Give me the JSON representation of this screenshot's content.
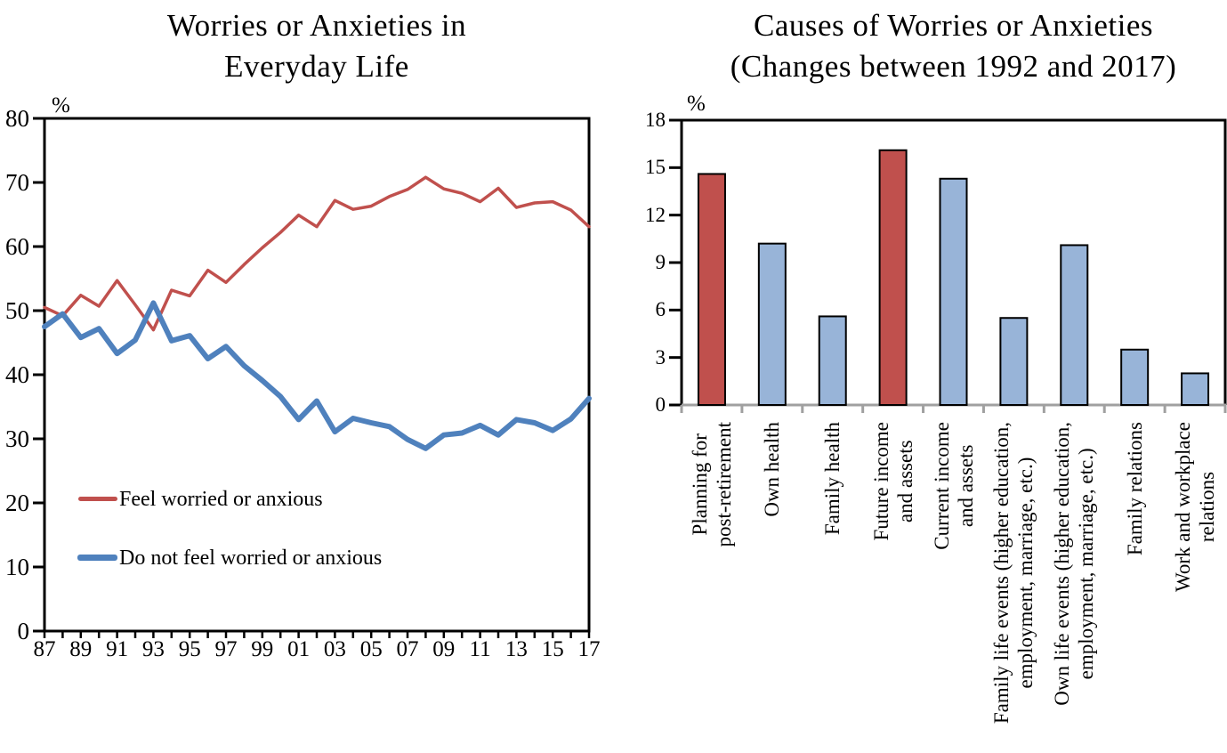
{
  "page": {
    "background": "#FFFFFF"
  },
  "chart_data": [
    {
      "type": "line",
      "title": "Worries or Anxieties in Everyday Life",
      "title_lines": [
        "Worries or Anxieties in",
        "Everyday Life"
      ],
      "unit_label": "%",
      "ylabel": "%",
      "ylim": [
        0,
        80
      ],
      "y_ticks": [
        0,
        10,
        20,
        30,
        40,
        50,
        60,
        70,
        80
      ],
      "x": [
        1987,
        1988,
        1989,
        1990,
        1991,
        1992,
        1993,
        1994,
        1995,
        1996,
        1997,
        1998,
        1999,
        2000,
        2001,
        2002,
        2003,
        2004,
        2005,
        2006,
        2007,
        2008,
        2009,
        2010,
        2011,
        2012,
        2013,
        2014,
        2015,
        2016,
        2017
      ],
      "x_tick_labels": [
        "87",
        "89",
        "91",
        "93",
        "95",
        "97",
        "99",
        "01",
        "03",
        "05",
        "07",
        "09",
        "11",
        "13",
        "15",
        "17"
      ],
      "grid": false,
      "legend_position": "inside-left-middle",
      "series": [
        {
          "name": "Feel worried or anxious",
          "color": "#C0504D",
          "line_width": 3.5,
          "values": [
            50.5,
            49.2,
            52.4,
            50.7,
            54.7,
            50.9,
            47.0,
            53.2,
            52.3,
            56.3,
            54.4,
            57.2,
            59.8,
            62.2,
            64.9,
            63.1,
            67.2,
            65.8,
            66.3,
            67.8,
            68.9,
            70.8,
            69.0,
            68.3,
            67.0,
            69.1,
            66.1,
            66.8,
            67.0,
            65.7,
            63.1
          ]
        },
        {
          "name": "Do not feel worried or anxious",
          "color": "#4F81BD",
          "line_width": 6,
          "values": [
            47.5,
            49.5,
            45.8,
            47.2,
            43.3,
            45.4,
            51.2,
            45.3,
            46.1,
            42.5,
            44.4,
            41.4,
            39.1,
            36.6,
            33.0,
            35.9,
            31.1,
            33.2,
            32.5,
            31.9,
            29.9,
            28.5,
            30.6,
            30.9,
            32.1,
            30.6,
            33.0,
            32.5,
            31.3,
            33.1,
            36.3
          ]
        }
      ]
    },
    {
      "type": "bar",
      "title": "Causes of Worries or Anxieties (Changes between 1992 and 2017)",
      "title_lines": [
        "Causes of Worries or Anxieties",
        "(Changes between 1992 and 2017)"
      ],
      "unit_label": "%",
      "ylim": [
        0,
        18
      ],
      "y_ticks": [
        0,
        3,
        6,
        9,
        12,
        15,
        18
      ],
      "grid": false,
      "categories": [
        "Planning for post-retirement",
        "Own health",
        "Family health",
        "Future income and assets",
        "Current income and assets",
        "Family life events (higher education, employment, marriage, etc.)",
        "Own life events (higher education, employment, marriage, etc.)",
        "Family relations",
        "Work and workplace relations"
      ],
      "category_lines": [
        [
          "Planning for",
          "post-retirement"
        ],
        [
          "Own health"
        ],
        [
          "Family health"
        ],
        [
          "Future income",
          "and assets"
        ],
        [
          "Current income",
          "and assets"
        ],
        [
          "Family life events (higher education,",
          "employment, marriage, etc.)"
        ],
        [
          "Own life events (higher education,",
          "employment, marriage, etc.)"
        ],
        [
          "Family relations"
        ],
        [
          "Work and workplace",
          "relations"
        ]
      ],
      "values": [
        14.6,
        10.2,
        5.6,
        16.1,
        14.3,
        5.5,
        10.1,
        3.5,
        2.0
      ],
      "bar_colors": [
        "#C0504D",
        "#98B4D8",
        "#98B4D8",
        "#C0504D",
        "#98B4D8",
        "#98B4D8",
        "#98B4D8",
        "#98B4D8",
        "#98B4D8"
      ],
      "bar_border_color": "#000000",
      "baseline_color": "#A0A0A0"
    }
  ]
}
